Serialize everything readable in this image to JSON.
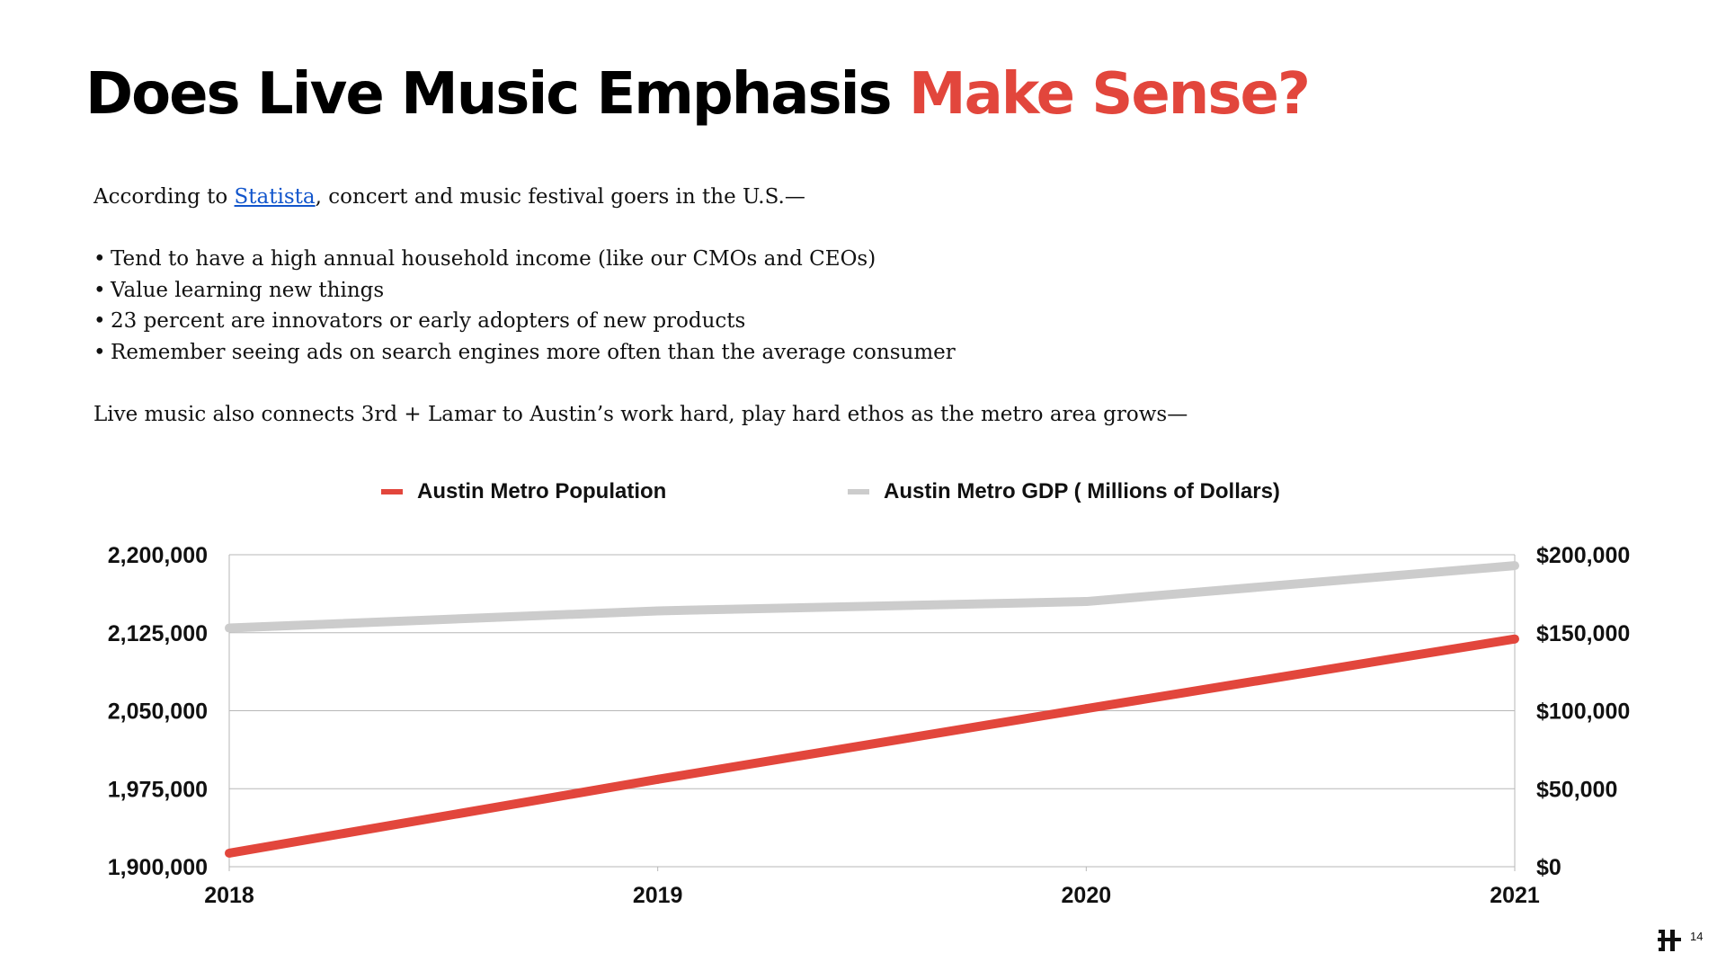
{
  "slide": {
    "title_main": "Does Live Music Emphasis",
    "title_accent": "Make Sense?",
    "intro_prefix": "According to ",
    "intro_link": "Statista",
    "intro_suffix": ", concert and music festival goers in the U.S.—",
    "bullets": [
      "Tend to have a high annual household income (like our CMOs and CEOs)",
      "Value learning new things",
      "23 percent are innovators or early adopters of new products",
      "Remember seeing ads on search engines more often than the average consumer"
    ],
    "closing": "Live music also connects 3rd + Lamar to Austin’s work hard, play hard ethos as the metro area grows—",
    "page_number": "14",
    "accent_color": "#e2463c",
    "link_color": "#1155cc",
    "logo_icon": "brand-logo-icon"
  },
  "chart_data": {
    "type": "line",
    "x": [
      "2018",
      "2019",
      "2020",
      "2021"
    ],
    "series": [
      {
        "name": "Austin Metro Population",
        "axis": "left",
        "color": "#e2463c",
        "values": [
          1913000,
          1984000,
          2052000,
          2119000
        ]
      },
      {
        "name": "Austin Metro GDP ( Millions of Dollars)",
        "axis": "right",
        "color": "#cccccc",
        "values": [
          153000,
          164000,
          170000,
          193000
        ]
      }
    ],
    "y_left": {
      "range": [
        1900000,
        2200000
      ],
      "ticks": [
        1900000,
        1975000,
        2050000,
        2125000,
        2200000
      ],
      "tick_labels": [
        "1,900,000",
        "1,975,000",
        "2,050,000",
        "2,125,000",
        "2,200,000"
      ]
    },
    "y_right": {
      "range": [
        0,
        200000
      ],
      "ticks": [
        0,
        50000,
        100000,
        150000,
        200000
      ],
      "tick_labels": [
        "$0",
        "$50,000",
        "$100,000",
        "$150,000",
        "$200,000"
      ]
    },
    "grid": true,
    "legend_position": "top"
  }
}
